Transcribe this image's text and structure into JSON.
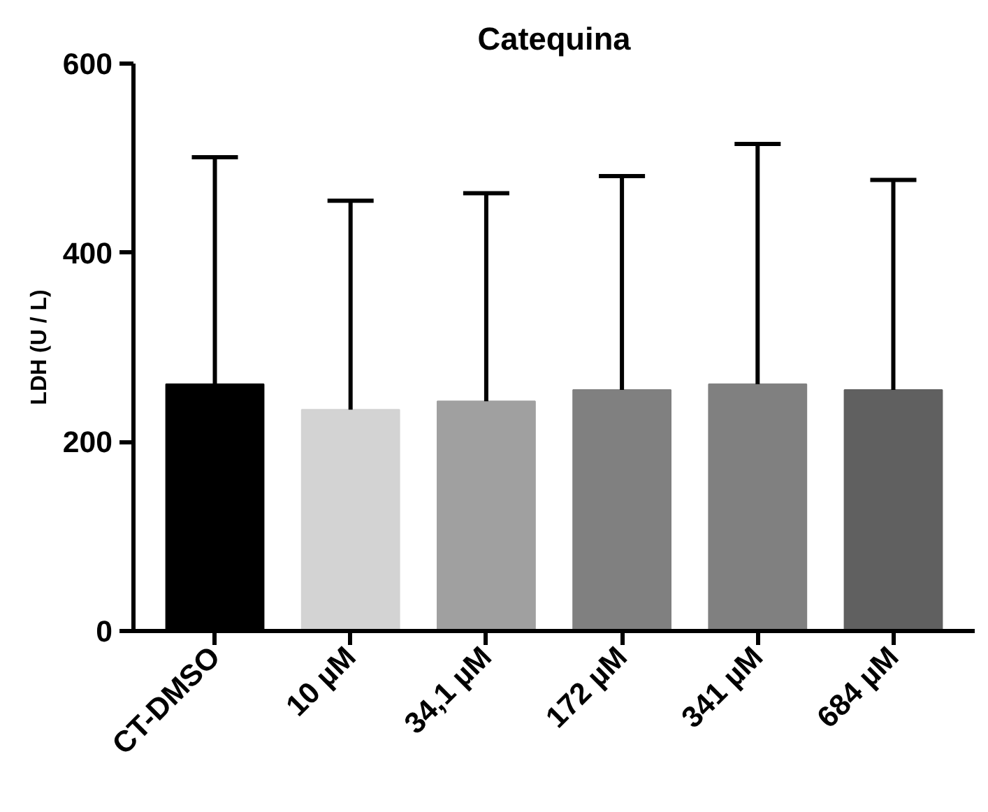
{
  "chart_data": {
    "type": "bar",
    "title": "Catequina",
    "ylabel": "LDH (U / L)",
    "categories": [
      "CT-DMSO",
      "10 µM",
      "34,1 µM",
      "172 µM",
      "341 µM",
      "684 µM"
    ],
    "values": [
      261,
      234,
      243,
      255,
      261,
      255
    ],
    "colors": [
      "#000000",
      "#d3d3d3",
      "#a0a0a0",
      "#808080",
      "#808080",
      "#606060"
    ],
    "errors": [
      [
        261,
        501
      ],
      [
        234,
        455
      ],
      [
        243,
        463
      ],
      [
        255,
        481
      ],
      [
        261,
        515
      ],
      [
        255,
        477
      ]
    ],
    "ylim": [
      0,
      600
    ],
    "yticks": [
      0,
      200,
      400,
      600
    ],
    "grid": false
  }
}
